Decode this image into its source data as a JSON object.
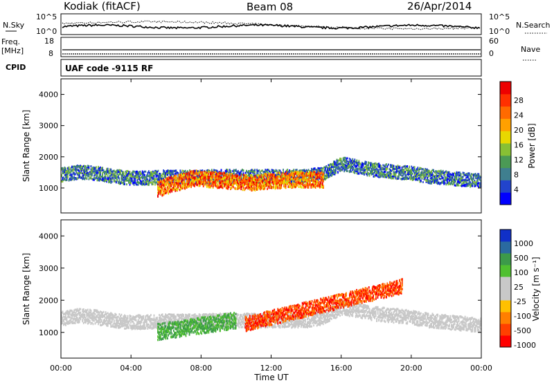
{
  "header": {
    "station": "Kodiak (fitACF)",
    "beam": "Beam 08",
    "date": "26/Apr/2014"
  },
  "strip_panels": {
    "nsky_label": "N.Sky",
    "nsky_ticks": [
      "10^5",
      "10^0"
    ],
    "nsearch_label": "N.Search",
    "nsearch_ticks": [
      "10^5",
      "10^0"
    ],
    "freq_label": "Freq.",
    "freq_unit": "[MHz]",
    "freq_ticks": [
      "18",
      "8"
    ],
    "nave_label": "Nave",
    "nave_ticks": [
      "60",
      "0"
    ],
    "cpid_label": "CPID",
    "cpid_text": "UAF code -9115 RF"
  },
  "chart_data": [
    {
      "type": "heatmap",
      "name": "power",
      "ylabel": "Slant Range [km]",
      "xlabel": "Time UT",
      "ylim": [
        200,
        4500
      ],
      "xlim_hours": [
        0,
        24
      ],
      "yticks": [
        1000,
        2000,
        3000,
        4000
      ],
      "colorbar_label": "Power [dB]",
      "colorbar_ticks": [
        "28",
        "24",
        "20",
        "16",
        "12",
        "8",
        "4"
      ],
      "colorbar_colors": [
        "#0000ff",
        "#2244cc",
        "#3f7f8f",
        "#4b9a55",
        "#88c034",
        "#e8d800",
        "#ffa000",
        "#ff6a00",
        "#ff3000",
        "#ee0000"
      ],
      "echo_regions": [
        {
          "t0": 0.0,
          "t1": 24.0,
          "center_km": [
            1450,
            1550,
            1500,
            1400,
            1350,
            1350,
            1380,
            1380,
            1380,
            1400,
            1400,
            1400,
            1400,
            1400,
            1400,
            1500,
            1800,
            1700,
            1600,
            1550,
            1500,
            1400,
            1350,
            1300,
            1250
          ],
          "half_width_km": 220,
          "level": "blue-green"
        },
        {
          "t0": 5.5,
          "t1": 15.0,
          "center_km": [
            1000,
            1200,
            1350,
            1300,
            1250,
            1200,
            1250,
            1300,
            1300,
            1300
          ],
          "half_width_km": 250,
          "level": "red-orange"
        }
      ]
    },
    {
      "type": "heatmap",
      "name": "velocity",
      "ylabel": "Slant Range [km]",
      "xlabel": "Time UT",
      "ylim": [
        200,
        4500
      ],
      "xlim_hours": [
        0,
        24
      ],
      "yticks": [
        1000,
        2000,
        3000,
        4000
      ],
      "xticks": [
        "00:00",
        "04:00",
        "08:00",
        "12:00",
        "16:00",
        "20:00",
        "00:00"
      ],
      "colorbar_label": "Velocity [m s⁻¹]",
      "colorbar_ticks": [
        "1000",
        "500",
        "100",
        "25",
        "-25",
        "-100",
        "-500",
        "-1000"
      ],
      "colorbar_colors": [
        "#ff0000",
        "#ff4000",
        "#ff7f00",
        "#ffc000",
        "#c8c8c8",
        "#c8c8c8",
        "#50c030",
        "#3c9a4a",
        "#2a6aa0",
        "#1030c8"
      ],
      "echo_regions": [
        {
          "t0": 5.5,
          "t1": 10.0,
          "level": "green"
        },
        {
          "t0": 10.5,
          "t1": 19.5,
          "level": "orange-red"
        }
      ]
    }
  ]
}
